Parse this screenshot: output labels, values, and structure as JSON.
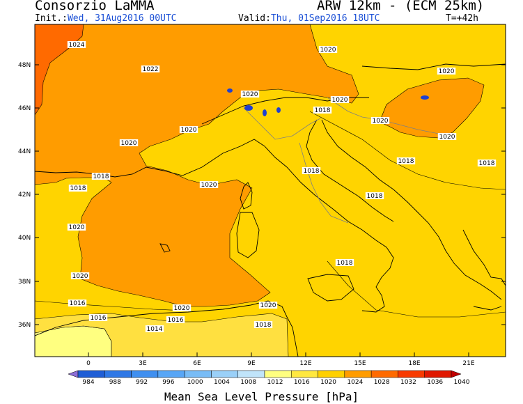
{
  "header": {
    "title_left": "Consorzio LaMMA",
    "title_right": "ARW 12km - (ECM 25km)",
    "init_label": "Init.:",
    "init_value": "Wed, 31Aug2016 00UTC",
    "valid_label": "Valid:",
    "valid_value": "Thu, 01Sep2016 18UTC",
    "lead_time": "T=+42h"
  },
  "map": {
    "lat_ticks": [
      "48N",
      "46N",
      "44N",
      "42N",
      "40N",
      "38N",
      "36N"
    ],
    "lon_ticks": [
      "0",
      "3E",
      "6E",
      "9E",
      "12E",
      "15E",
      "18E",
      "21E"
    ],
    "isobar_labels": [
      "1024",
      "1022",
      "1020",
      "1020",
      "1020",
      "1020",
      "1020",
      "1020",
      "1020",
      "1020",
      "1020",
      "1020",
      "1020",
      "1020",
      "1020",
      "1018",
      "1018",
      "1018",
      "1018",
      "1018",
      "1018",
      "1018",
      "1018",
      "1018",
      "1016",
      "1016",
      "1016",
      "1014"
    ],
    "colors": {
      "band_1012_1016": "#ffff80",
      "band_1016_1020": "#ffd400",
      "band_1020_1024": "#ff9c00",
      "band_1024_1028": "#ff6a00",
      "land_outline": "#000000",
      "lakes": "#2040d0",
      "borders": "#808080"
    }
  },
  "colorbar": {
    "title": "Mean Sea Level Pressure [hPa]",
    "levels": [
      "984",
      "988",
      "992",
      "996",
      "1000",
      "1004",
      "1008",
      "1012",
      "1016",
      "1020",
      "1024",
      "1028",
      "1032",
      "1036",
      "1040"
    ],
    "colors": [
      "#8c6fd6",
      "#1f5ed6",
      "#2f78e6",
      "#3f8ff0",
      "#58a6f6",
      "#78bcf6",
      "#9ad0f8",
      "#c0e4fa",
      "#ffff80",
      "#ffe840",
      "#ffd000",
      "#ff9c00",
      "#ff6a00",
      "#f83a00",
      "#e01800",
      "#c00000"
    ]
  }
}
